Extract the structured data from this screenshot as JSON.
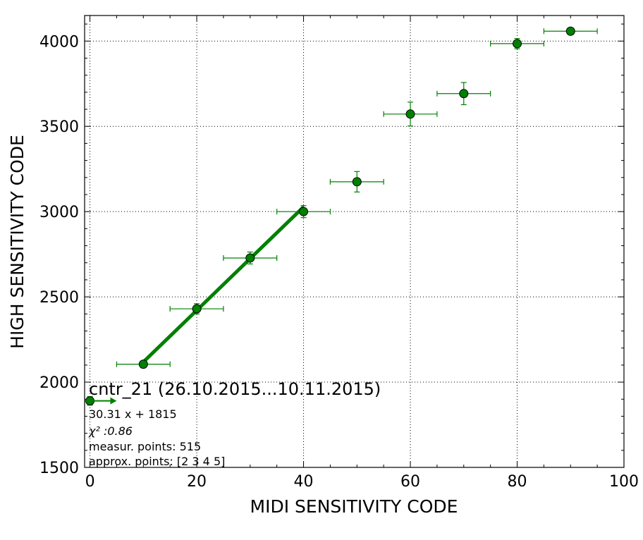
{
  "chart_data": {
    "type": "scatter",
    "title": "cntr_21 (26.10.2015...10.11.2015)",
    "xlabel": "MIDI SENSITIVITY CODE",
    "ylabel": "HIGH SENSITIVITY CODE",
    "xlim": [
      -1,
      100
    ],
    "ylim": [
      1500,
      4150
    ],
    "xticks": [
      "0",
      "20",
      "40",
      "60",
      "80",
      "100"
    ],
    "yticks": [
      "1500",
      "2000",
      "2500",
      "3000",
      "3500",
      "4000"
    ],
    "grid": true,
    "colors": {
      "series": "#008000",
      "marker_edge": "#000000"
    },
    "series": [
      {
        "marker": "circle",
        "points": [
          {
            "x": 0,
            "y": 1890,
            "xerr": 0,
            "yerr": 25
          },
          {
            "x": 10,
            "y": 2105,
            "xerr": 5,
            "yerr": 15
          },
          {
            "x": 20,
            "y": 2430,
            "xerr": 5,
            "yerr": 30
          },
          {
            "x": 30,
            "y": 2728,
            "xerr": 5,
            "yerr": 35
          },
          {
            "x": 40,
            "y": 3000,
            "xerr": 5,
            "yerr": 35
          },
          {
            "x": 50,
            "y": 3175,
            "xerr": 5,
            "yerr": 60
          },
          {
            "x": 60,
            "y": 3572,
            "xerr": 5,
            "yerr": 70
          },
          {
            "x": 70,
            "y": 3692,
            "xerr": 5,
            "yerr": 65
          },
          {
            "x": 80,
            "y": 3985,
            "xerr": 5,
            "yerr": 30
          },
          {
            "x": 90,
            "y": 4058,
            "xerr": 5,
            "yerr": 15
          }
        ]
      }
    ],
    "fit_line": {
      "slope": 30.31,
      "intercept": 1815,
      "x_range": [
        10,
        40
      ]
    },
    "arrow": {
      "x_from": -1,
      "x_to": 5,
      "y": 1890
    },
    "annotations": [
      "30.31 x + 1815",
      "χ² :0.86",
      "measur. points: 515",
      "approx. points: [2 3 4 5]"
    ]
  }
}
